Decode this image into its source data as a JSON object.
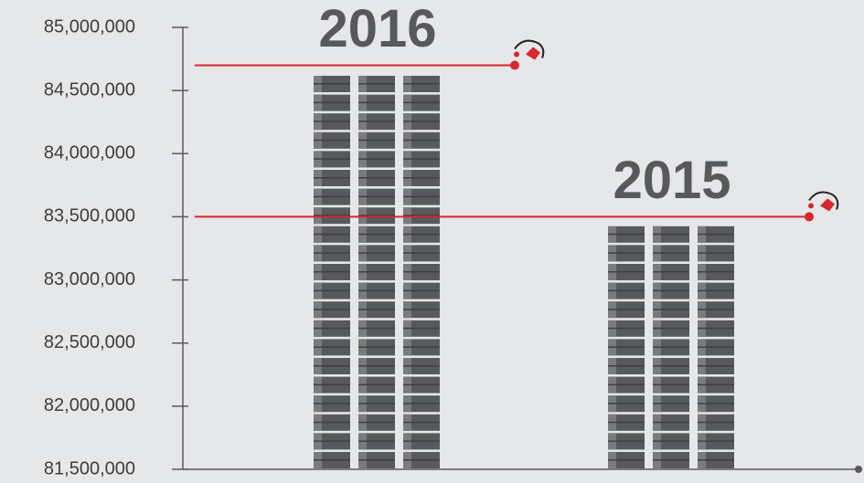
{
  "chart_data": {
    "type": "bar",
    "categories": [
      "2016",
      "2015"
    ],
    "values": [
      84700000,
      83500000
    ],
    "color": "#58595b",
    "line_color": "#d7272f",
    "ylim": [
      81500000,
      85000000
    ],
    "yticks": [
      {
        "value": 81500000,
        "label": "81,500,000"
      },
      {
        "value": 82000000,
        "label": "82,000,000"
      },
      {
        "value": 82500000,
        "label": "82,500,000"
      },
      {
        "value": 83000000,
        "label": "83,000,000"
      },
      {
        "value": 83500000,
        "label": "83,500,000"
      },
      {
        "value": 84000000,
        "label": "84,000,000"
      },
      {
        "value": 84500000,
        "label": "84,500,000"
      },
      {
        "value": 85000000,
        "label": "85,000,000"
      }
    ]
  }
}
